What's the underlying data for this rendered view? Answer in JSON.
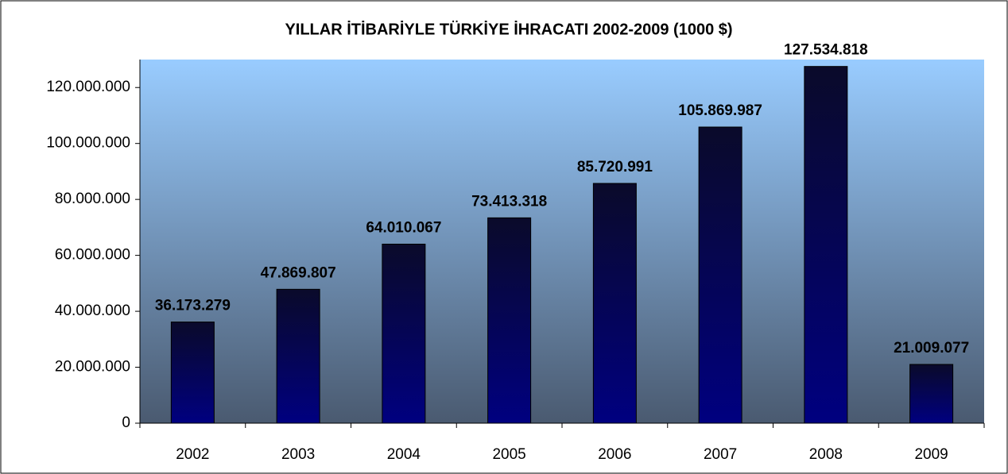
{
  "chart_data": {
    "type": "bar",
    "title": "YILLAR İTİBARİYLE TÜRKİYE İHRACATI 2002-2009 (1000 $)",
    "categories": [
      "2002",
      "2003",
      "2004",
      "2005",
      "2006",
      "2007",
      "2008",
      "2009"
    ],
    "values": [
      36173279,
      47869807,
      64010067,
      73413318,
      85720991,
      105869987,
      127534818,
      21009077
    ],
    "value_labels": [
      "36.173.279",
      "47.869.807",
      "64.010.067",
      "73.413.318",
      "85.720.991",
      "105.869.987",
      "127.534.818",
      "21.009.077"
    ],
    "color": "#000080",
    "ylim": [
      0,
      130000000
    ],
    "yticks": [
      0,
      {
        "value": 20000000,
        "label": "20.000.000"
      },
      {
        "value": 40000000,
        "label": "40.000.000"
      },
      {
        "value": 60000000,
        "label": "60.000.000"
      },
      {
        "value": 80000000,
        "label": "80.000.000"
      },
      {
        "value": 100000000,
        "label": "100.000.000"
      },
      {
        "value": 120000000,
        "label": "120.000.000"
      }
    ]
  }
}
